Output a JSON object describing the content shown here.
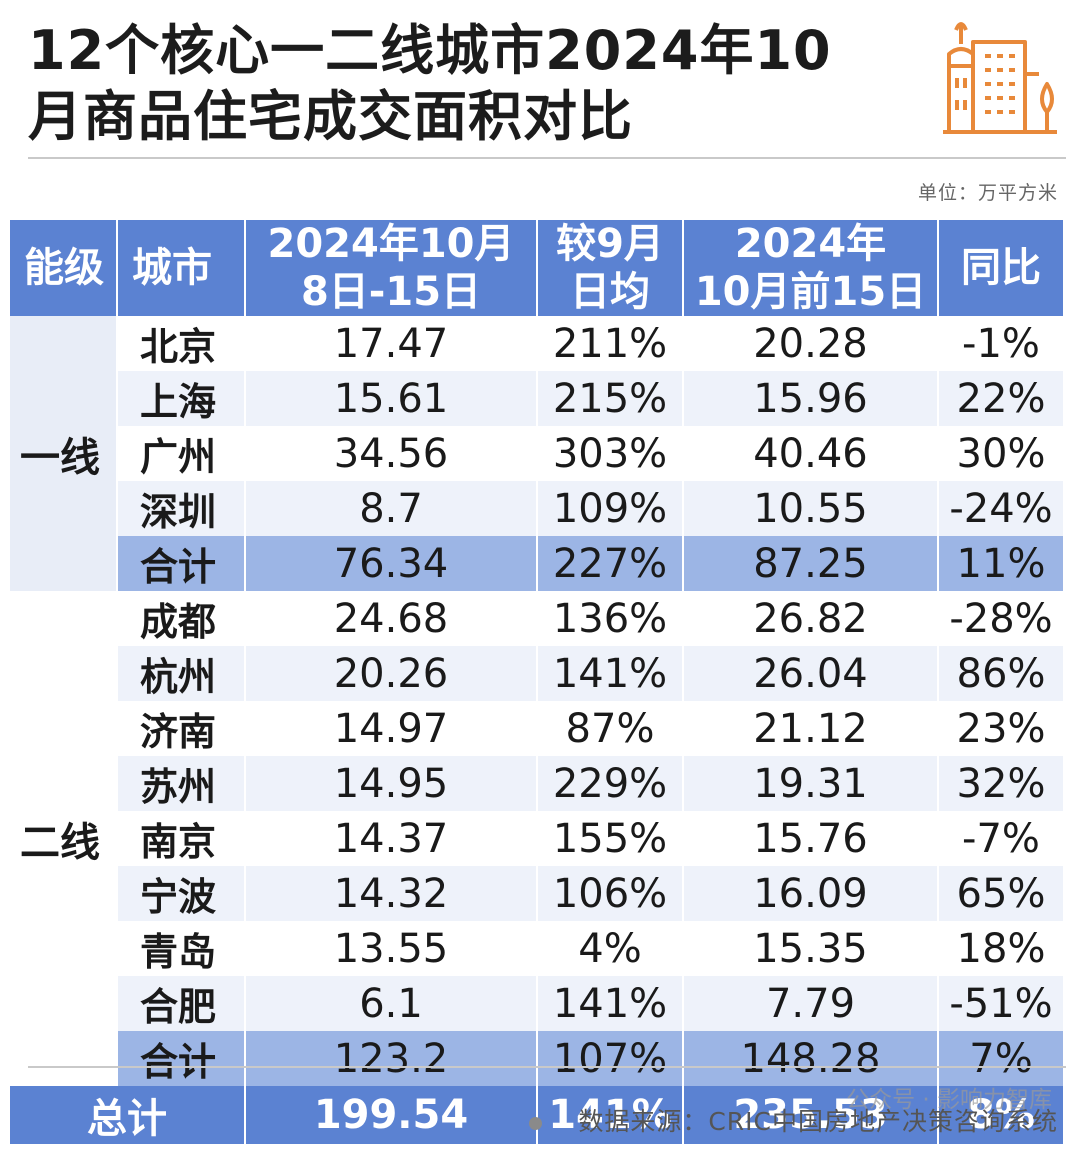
{
  "title_line1": "12个核心一二线城市2024年10",
  "title_line2": "月商品住宅成交面积对比",
  "unit": "单位：万平方米",
  "source": "数据来源：CRIC中国房地产决策咨询系统",
  "watermark": "公众号 · 影响力智库",
  "colors": {
    "header": "#5b82d2",
    "subtotal": "#9cb5e5",
    "stripe": "#eef2fa",
    "logo": "#e8893a"
  },
  "headers": {
    "tier": "能级",
    "city": "城市",
    "period_l1": "2024年10月",
    "period_l2": "8日-15日",
    "vs_l1": "较9月",
    "vs_l2": "日均",
    "ytd_l1": "2024年",
    "ytd_l2": "10月前15日",
    "yoy": "同比"
  },
  "tier1": {
    "label": "一线",
    "rows": [
      {
        "city": "北京",
        "v": "17.47",
        "vs": "211%",
        "ytd": "20.28",
        "yoy": "-1%"
      },
      {
        "city": "上海",
        "v": "15.61",
        "vs": "215%",
        "ytd": "15.96",
        "yoy": "22%"
      },
      {
        "city": "广州",
        "v": "34.56",
        "vs": "303%",
        "ytd": "40.46",
        "yoy": "30%"
      },
      {
        "city": "深圳",
        "v": "8.7",
        "vs": "109%",
        "ytd": "10.55",
        "yoy": "-24%"
      }
    ],
    "subtotal": {
      "city": "合计",
      "v": "76.34",
      "vs": "227%",
      "ytd": "87.25",
      "yoy": "11%"
    }
  },
  "tier2": {
    "label": "二线",
    "rows": [
      {
        "city": "成都",
        "v": "24.68",
        "vs": "136%",
        "ytd": "26.82",
        "yoy": "-28%"
      },
      {
        "city": "杭州",
        "v": "20.26",
        "vs": "141%",
        "ytd": "26.04",
        "yoy": "86%"
      },
      {
        "city": "济南",
        "v": "14.97",
        "vs": "87%",
        "ytd": "21.12",
        "yoy": "23%"
      },
      {
        "city": "苏州",
        "v": "14.95",
        "vs": "229%",
        "ytd": "19.31",
        "yoy": "32%"
      },
      {
        "city": "南京",
        "v": "14.37",
        "vs": "155%",
        "ytd": "15.76",
        "yoy": "-7%"
      },
      {
        "city": "宁波",
        "v": "14.32",
        "vs": "106%",
        "ytd": "16.09",
        "yoy": "65%"
      },
      {
        "city": "青岛",
        "v": "13.55",
        "vs": "4%",
        "ytd": "15.35",
        "yoy": "18%"
      },
      {
        "city": "合肥",
        "v": "6.1",
        "vs": "141%",
        "ytd": "7.79",
        "yoy": "-51%"
      }
    ],
    "subtotal": {
      "city": "合计",
      "v": "123.2",
      "vs": "107%",
      "ytd": "148.28",
      "yoy": "7%"
    }
  },
  "total": {
    "label": "总计",
    "v": "199.54",
    "vs": "141%",
    "ytd": "235.53",
    "yoy": "8%"
  }
}
